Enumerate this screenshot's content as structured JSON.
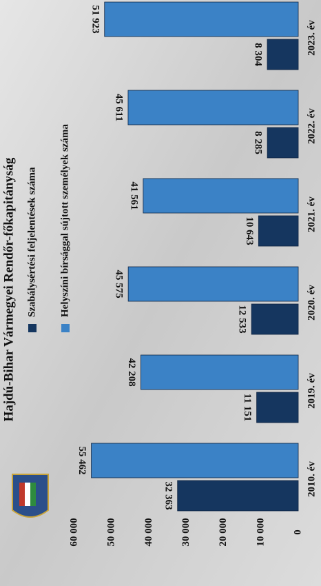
{
  "chart_data": {
    "type": "bar",
    "title": "Hajdú-Bihar Vármegyei Rendőr-főkapitányság",
    "categories": [
      "2010. év",
      "2019. év",
      "2020. év",
      "2021. év",
      "2022. év",
      "2023. év"
    ],
    "series": [
      {
        "name": "Szabálysértési feljelentések száma",
        "color": "#15365f",
        "values": [
          32363,
          11151,
          12533,
          10643,
          8285,
          8304
        ],
        "value_labels": [
          "32 363",
          "11 151",
          "12 533",
          "10 643",
          "8 285",
          "8 304"
        ]
      },
      {
        "name": "Helyszíni bírsággal sújtott személyek száma",
        "color": "#3b82c6",
        "values": [
          55462,
          42208,
          45575,
          41561,
          45611,
          51923
        ],
        "value_labels": [
          "55 462",
          "42 208",
          "45 575",
          "41 561",
          "45 611",
          "51 923"
        ]
      }
    ],
    "ylim": [
      0,
      60000
    ],
    "yticks": [
      {
        "value": 0,
        "label": "0"
      },
      {
        "value": 10000,
        "label": "10 000"
      },
      {
        "value": 20000,
        "label": "20 000"
      },
      {
        "value": 30000,
        "label": "30 000"
      },
      {
        "value": 40000,
        "label": "40 000"
      },
      {
        "value": 50000,
        "label": "50 000"
      },
      {
        "value": 60000,
        "label": "60 000"
      }
    ]
  }
}
